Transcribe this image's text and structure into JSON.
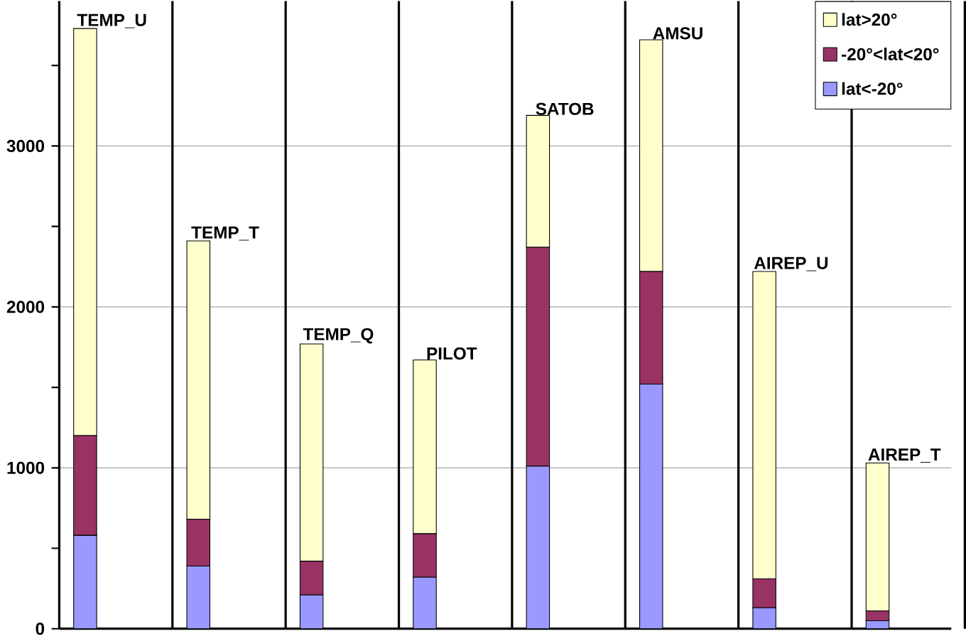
{
  "chart_data": {
    "type": "bar",
    "stacked": true,
    "categories": [
      "TEMP_U",
      "TEMP_T",
      "TEMP_Q",
      "PILOT",
      "SATOB",
      "AMSU",
      "AIREP_U",
      "AIREP_T"
    ],
    "series": [
      {
        "name": "lat<-20°",
        "color": "#9999ff",
        "values": [
          580,
          390,
          210,
          320,
          1010,
          1520,
          130,
          50
        ]
      },
      {
        "name": "-20°<lat<20°",
        "color": "#993366",
        "values": [
          620,
          290,
          210,
          270,
          1360,
          700,
          180,
          60
        ]
      },
      {
        "name": "lat>20°",
        "color": "#ffffcc",
        "values": [
          2530,
          1730,
          1350,
          1080,
          820,
          1440,
          1910,
          920
        ]
      }
    ],
    "ylim": [
      0,
      3900
    ],
    "yticks": [
      0,
      {
        "value": 500,
        "label": null
      },
      1000,
      {
        "value": 1500,
        "label": null
      },
      2000,
      {
        "value": 2500,
        "label": null
      },
      3000,
      {
        "value": 3500,
        "label": null
      }
    ],
    "grid": true,
    "legend": "top right"
  }
}
